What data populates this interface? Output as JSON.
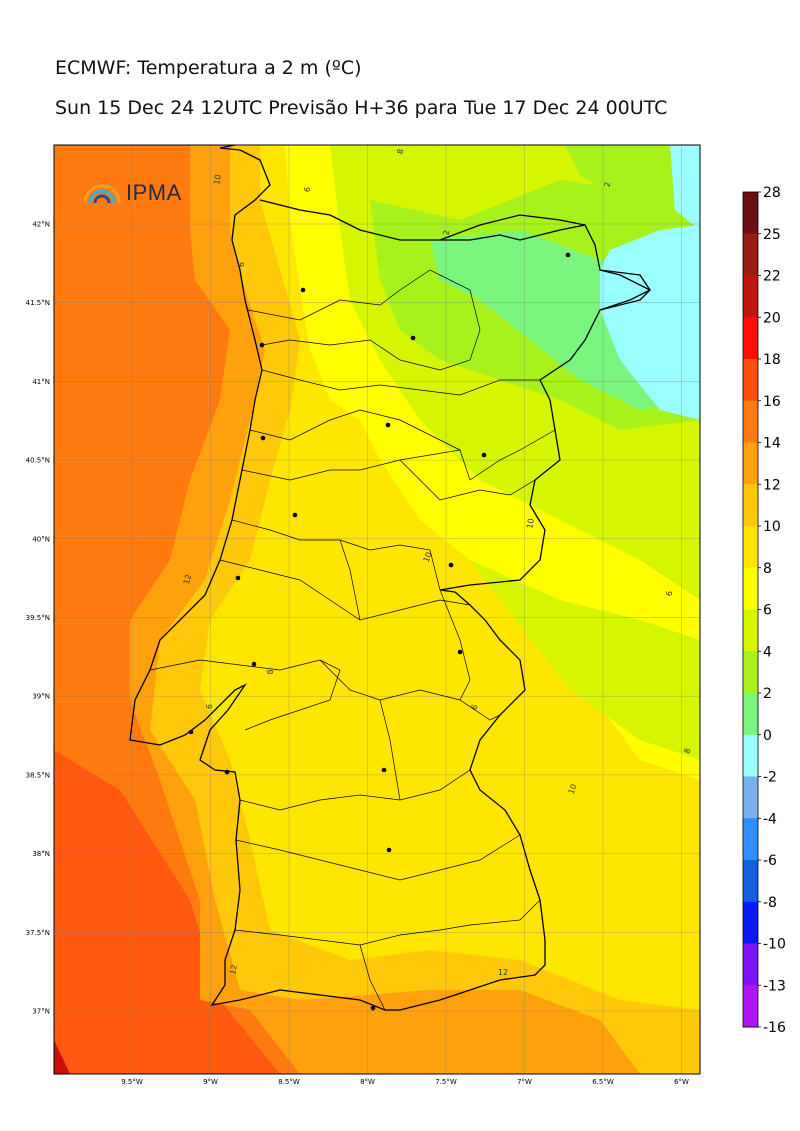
{
  "header": {
    "title": "ECMWF: Temperatura a 2 m (ºC)",
    "subtitle": "Sun 15 Dec 24 12UTC Previsão H+36 para Tue 17 Dec 24 00UTC"
  },
  "logo": {
    "text": "IPMA",
    "icon": "rainbow-arc-icon"
  },
  "map": {
    "lon_range": [
      -10.0,
      -5.9
    ],
    "lat_range": [
      36.6,
      42.5
    ],
    "lat_ticks": [
      "42°N",
      "41.5°N",
      "41°N",
      "40.5°N",
      "40°N",
      "39.5°N",
      "39°N",
      "38.5°N",
      "38°N",
      "37.5°N",
      "37°N"
    ],
    "lon_ticks": [
      "9.5°W",
      "9°W",
      "8.5°W",
      "8°W",
      "7.5°W",
      "7°W",
      "6.5°W",
      "6°W"
    ],
    "contour_labels": [
      "6",
      "8",
      "2",
      "6",
      "2",
      "10",
      "12",
      "10",
      "6",
      "6",
      "8",
      "6",
      "8",
      "10",
      "12",
      "12",
      "10"
    ]
  },
  "colorbar": {
    "labels": [
      "28",
      "25",
      "22",
      "20",
      "18",
      "16",
      "14",
      "12",
      "10",
      "8",
      "6",
      "4",
      "2",
      "0",
      "-2",
      "-4",
      "-6",
      "-8",
      "-10",
      "-13",
      "-16"
    ],
    "colors": [
      "#6b0f0f",
      "#9b1c12",
      "#c01410",
      "#ff0d0d",
      "#ff4f0d",
      "#ff7a10",
      "#ffa10d",
      "#ffc80a",
      "#ffe600",
      "#ffff00",
      "#d6f500",
      "#a8f21c",
      "#7af57e",
      "#99ffff",
      "#7ab0f0",
      "#2f8fff",
      "#1260e0",
      "#0a1af5",
      "#7a14f5",
      "#b314f5",
      "#f514f5"
    ],
    "units": "ºC"
  },
  "colors": {
    "sea": "#ff7b10",
    "sea_deep": "#ff5a10",
    "land_mid": "#ffe600",
    "land_warm": "#ffc80a",
    "land_cool": "#d6f500",
    "land_cold": "#7af57e",
    "frost": "#99ffff"
  }
}
